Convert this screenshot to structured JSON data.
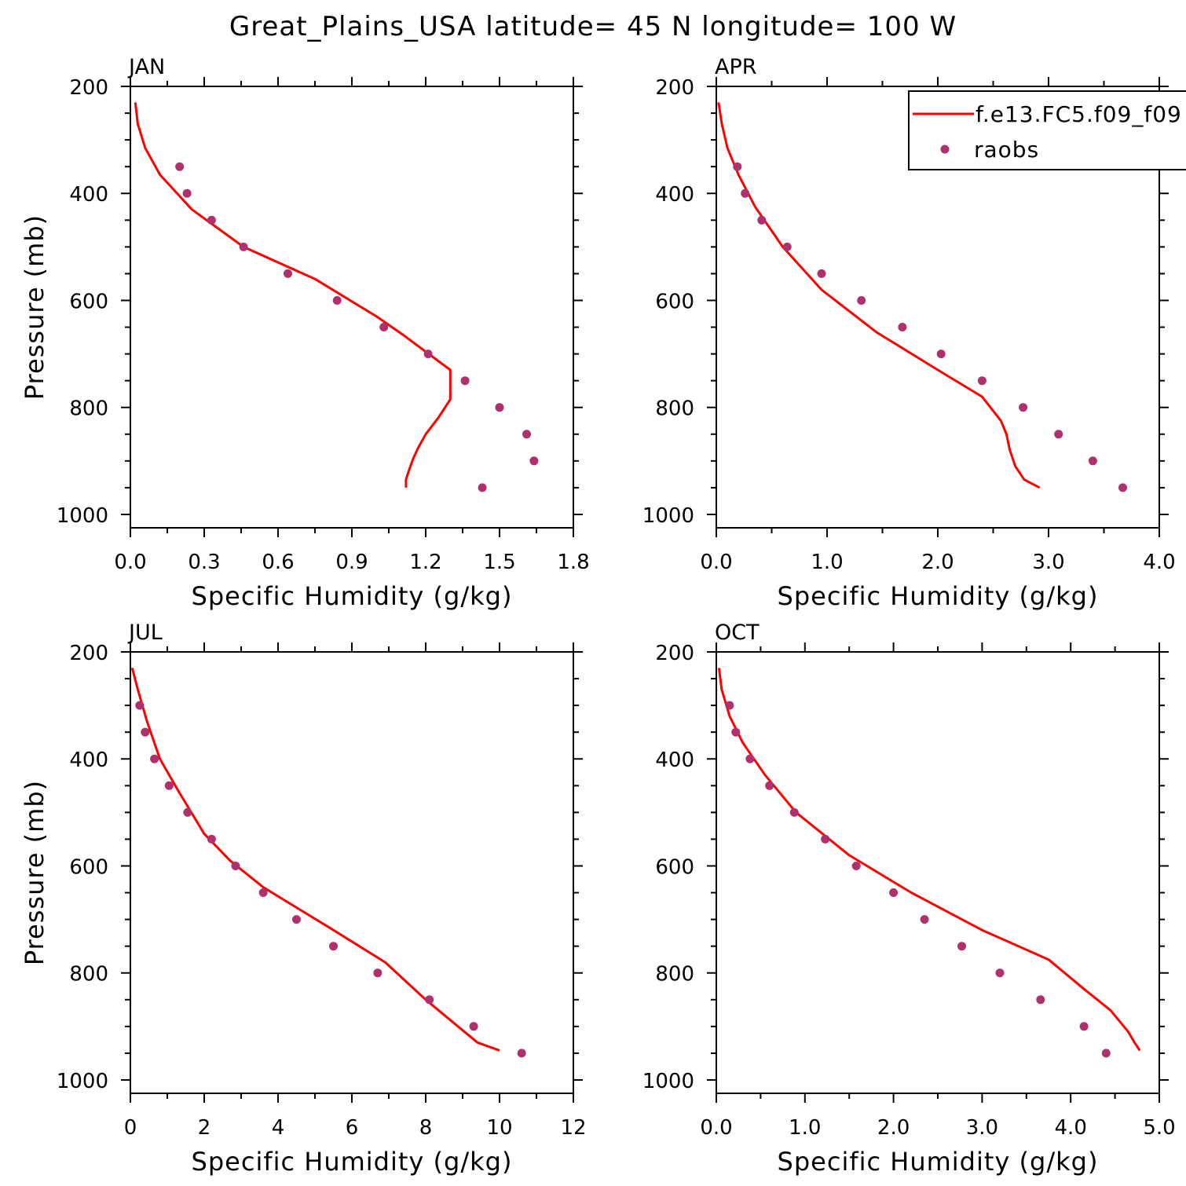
{
  "title": "Great_Plains_USA  latitude= 45 N longitude= 100 W",
  "colors": {
    "model": "#ff0000",
    "obs": "#b0306e",
    "axis": "#000000"
  },
  "legend": {
    "model": "f.e13.FC5.f09_f09",
    "obs": "raobs"
  },
  "chart_data": [
    {
      "type": "line",
      "panel": "JAN",
      "xlabel": "Specific Humidity (g/kg)",
      "ylabel": "Pressure (mb)",
      "xlim": [
        0,
        1.8
      ],
      "ylim": [
        200,
        1025
      ],
      "y_inverted": true,
      "xticks": [
        "0.0",
        "0.3",
        "0.6",
        "0.9",
        "1.2",
        "1.5",
        "1.8"
      ],
      "yticks": [
        "200",
        "400",
        "600",
        "800",
        "1000"
      ],
      "series": [
        {
          "name": "f.e13.FC5.f09_f09",
          "style": "line",
          "x": [
            0.02,
            0.03,
            0.06,
            0.12,
            0.25,
            0.46,
            0.75,
            1.0,
            1.11,
            1.3,
            1.3,
            1.25,
            1.2,
            1.17,
            1.15,
            1.13,
            1.12,
            1.12
          ],
          "y": [
            230,
            270,
            315,
            365,
            430,
            500,
            560,
            630,
            665,
            730,
            785,
            820,
            850,
            875,
            895,
            920,
            935,
            950
          ]
        },
        {
          "name": "raobs",
          "style": "markers",
          "x": [
            0.2,
            0.23,
            0.33,
            0.46,
            0.64,
            0.84,
            1.03,
            1.21,
            1.36,
            1.5,
            1.61,
            1.64,
            1.43
          ],
          "y": [
            350,
            400,
            450,
            500,
            550,
            600,
            650,
            700,
            750,
            800,
            850,
            900,
            950
          ]
        }
      ]
    },
    {
      "type": "line",
      "panel": "APR",
      "xlabel": "Specific Humidity (g/kg)",
      "ylabel": "",
      "xlim": [
        0,
        4.0
      ],
      "ylim": [
        200,
        1025
      ],
      "y_inverted": true,
      "legend_position": "top-right",
      "xticks": [
        "0.0",
        "1.0",
        "2.0",
        "3.0",
        "4.0"
      ],
      "yticks": [
        "200",
        "400",
        "600",
        "800",
        "1000"
      ],
      "series": [
        {
          "name": "f.e13.FC5.f09_f09",
          "style": "line",
          "x": [
            0.02,
            0.05,
            0.1,
            0.2,
            0.35,
            0.6,
            0.95,
            1.45,
            2.0,
            2.4,
            2.57,
            2.62,
            2.65,
            2.7,
            2.78,
            2.92
          ],
          "y": [
            230,
            270,
            315,
            365,
            425,
            500,
            580,
            660,
            730,
            780,
            825,
            850,
            880,
            910,
            935,
            950
          ]
        },
        {
          "name": "raobs",
          "style": "markers",
          "x": [
            0.19,
            0.26,
            0.41,
            0.64,
            0.95,
            1.31,
            1.68,
            2.03,
            2.4,
            2.77,
            3.09,
            3.4,
            3.67
          ],
          "y": [
            350,
            400,
            450,
            500,
            550,
            600,
            650,
            700,
            750,
            800,
            850,
            900,
            950
          ]
        }
      ]
    },
    {
      "type": "line",
      "panel": "JUL",
      "xlabel": "Specific Humidity (g/kg)",
      "ylabel": "Pressure (mb)",
      "xlim": [
        0,
        12
      ],
      "ylim": [
        200,
        1025
      ],
      "y_inverted": true,
      "xticks": [
        "0",
        "2",
        "4",
        "6",
        "8",
        "10",
        "12"
      ],
      "yticks": [
        "200",
        "400",
        "600",
        "800",
        "1000"
      ],
      "series": [
        {
          "name": "f.e13.FC5.f09_f09",
          "style": "line",
          "x": [
            0.05,
            0.2,
            0.45,
            0.8,
            1.3,
            2.0,
            2.7,
            3.6,
            5.5,
            6.9,
            8.0,
            9.4,
            10.0
          ],
          "y": [
            230,
            270,
            330,
            400,
            460,
            540,
            590,
            640,
            720,
            780,
            850,
            930,
            945
          ]
        },
        {
          "name": "raobs",
          "style": "markers",
          "x": [
            0.25,
            0.4,
            0.65,
            1.05,
            1.55,
            2.2,
            2.85,
            3.6,
            4.5,
            5.5,
            6.7,
            8.1,
            9.3,
            10.6
          ],
          "y": [
            300,
            350,
            400,
            450,
            500,
            550,
            600,
            650,
            700,
            750,
            800,
            850,
            900,
            950
          ]
        }
      ]
    },
    {
      "type": "line",
      "panel": "OCT",
      "xlabel": "Specific Humidity (g/kg)",
      "ylabel": "",
      "xlim": [
        0,
        5.0
      ],
      "ylim": [
        200,
        1025
      ],
      "y_inverted": true,
      "xticks": [
        "0.0",
        "1.0",
        "2.0",
        "3.0",
        "4.0",
        "5.0"
      ],
      "yticks": [
        "200",
        "400",
        "600",
        "800",
        "1000"
      ],
      "series": [
        {
          "name": "f.e13.FC5.f09_f09",
          "style": "line",
          "x": [
            0.03,
            0.06,
            0.15,
            0.3,
            0.55,
            0.9,
            1.5,
            2.2,
            3.0,
            3.75,
            4.15,
            4.45,
            4.65,
            4.72,
            4.78
          ],
          "y": [
            230,
            270,
            320,
            370,
            430,
            500,
            580,
            650,
            720,
            775,
            830,
            870,
            910,
            930,
            945
          ]
        },
        {
          "name": "raobs",
          "style": "markers",
          "x": [
            0.15,
            0.22,
            0.38,
            0.6,
            0.88,
            1.23,
            1.58,
            2.0,
            2.35,
            2.77,
            3.2,
            3.66,
            4.15,
            4.4
          ],
          "y": [
            300,
            350,
            400,
            450,
            500,
            550,
            600,
            650,
            700,
            750,
            800,
            850,
            900,
            950
          ]
        }
      ]
    }
  ]
}
